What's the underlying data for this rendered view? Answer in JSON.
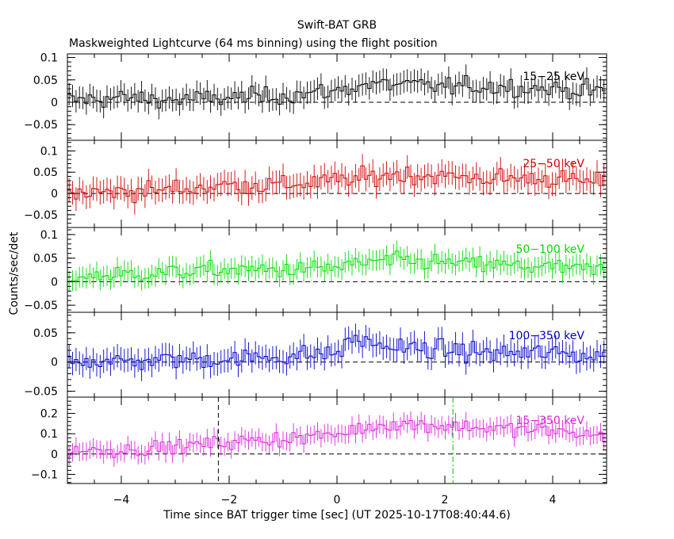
{
  "header": {
    "title": "Swift-BAT GRB",
    "subtitle": "Maskweighted Lightcurve (64 ms binning) using the flight position"
  },
  "axes": {
    "xlabel": "Time since BAT trigger time [sec] (UT 2025-10-17T08:40:44.6)",
    "ylabel": "Counts/sec/det"
  },
  "chart_data": {
    "type": "line",
    "style": "step with error bars",
    "x_range": [
      -5.0,
      5.0
    ],
    "x_ticks": [
      -4,
      -2,
      0,
      2,
      4
    ],
    "x_tick_labels": [
      "−4",
      "−2",
      "0",
      "2",
      "4"
    ],
    "bin_width_sec": 0.064,
    "markers": [
      {
        "x": -2.2,
        "panel": 4,
        "style": "dashed",
        "color": "#000000"
      },
      {
        "x": 2.15,
        "panel": 4,
        "style": "dash-dot",
        "color": "#00c000"
      }
    ],
    "panels": [
      {
        "band": "15−25 keV",
        "color": "#000000",
        "ylim": [
          -0.085,
          0.108
        ],
        "yticks": [
          0.1,
          0.05,
          0,
          -0.05
        ],
        "yticklabels": [
          "0.1",
          "0.05",
          "0",
          "−0.05"
        ],
        "error": 0.025,
        "points": [
          [
            -4.8,
            0.005
          ],
          [
            -4.0,
            0.01
          ],
          [
            -3.0,
            0.005
          ],
          [
            -2.0,
            0.01
          ],
          [
            -1.0,
            0.015
          ],
          [
            0.0,
            0.025
          ],
          [
            0.5,
            0.04
          ],
          [
            1.0,
            0.04
          ],
          [
            2.0,
            0.035
          ],
          [
            3.0,
            0.035
          ],
          [
            4.0,
            0.03
          ],
          [
            4.8,
            0.025
          ]
        ]
      },
      {
        "band": "25−50 keV",
        "color": "#d00000",
        "ylim": [
          -0.08,
          0.125
        ],
        "yticks": [
          0.1,
          0.05,
          0,
          -0.05
        ],
        "yticklabels": [
          "0.1",
          "0.05",
          "0",
          "−0.05"
        ],
        "error": 0.028,
        "points": [
          [
            -4.8,
            0.0
          ],
          [
            -4.0,
            0.005
          ],
          [
            -3.0,
            0.01
          ],
          [
            -2.0,
            0.02
          ],
          [
            -1.0,
            0.02
          ],
          [
            0.0,
            0.03
          ],
          [
            0.5,
            0.035
          ],
          [
            1.0,
            0.045
          ],
          [
            2.0,
            0.04
          ],
          [
            3.0,
            0.035
          ],
          [
            4.0,
            0.035
          ],
          [
            4.8,
            0.025
          ]
        ]
      },
      {
        "band": "50−100 keV",
        "color": "#00dd00",
        "ylim": [
          -0.065,
          0.115
        ],
        "yticks": [
          0.1,
          0.05,
          0,
          -0.05
        ],
        "yticklabels": [
          "0.1",
          "0.05",
          "0",
          "−0.05"
        ],
        "error": 0.022,
        "points": [
          [
            -4.8,
            0.01
          ],
          [
            -4.0,
            0.015
          ],
          [
            -3.0,
            0.02
          ],
          [
            -2.0,
            0.025
          ],
          [
            -1.0,
            0.025
          ],
          [
            0.0,
            0.03
          ],
          [
            0.5,
            0.04
          ],
          [
            1.0,
            0.045
          ],
          [
            2.0,
            0.04
          ],
          [
            3.0,
            0.035
          ],
          [
            4.0,
            0.03
          ],
          [
            4.8,
            0.025
          ]
        ]
      },
      {
        "band": "100−350 keV",
        "color": "#0000cc",
        "ylim": [
          -0.06,
          0.085
        ],
        "yticks": [
          0.05,
          0,
          -0.05
        ],
        "yticklabels": [
          "0.05",
          "0",
          "−0.05"
        ],
        "error": 0.02,
        "points": [
          [
            -4.8,
            0.005
          ],
          [
            -4.0,
            0.0
          ],
          [
            -3.0,
            0.005
          ],
          [
            -2.0,
            0.005
          ],
          [
            -1.0,
            0.01
          ],
          [
            0.0,
            0.015
          ],
          [
            0.3,
            0.04
          ],
          [
            1.0,
            0.025
          ],
          [
            2.0,
            0.02
          ],
          [
            3.0,
            0.015
          ],
          [
            4.0,
            0.015
          ],
          [
            4.8,
            0.01
          ]
        ]
      },
      {
        "band": "15−350 keV",
        "color": "#dd22dd",
        "ylim": [
          -0.145,
          0.28
        ],
        "yticks": [
          0.2,
          0.1,
          0,
          -0.1
        ],
        "yticklabels": [
          "0.2",
          "0.1",
          "0",
          "−0.1"
        ],
        "error": 0.045,
        "points": [
          [
            -4.8,
            0.02
          ],
          [
            -4.0,
            0.02
          ],
          [
            -3.0,
            0.035
          ],
          [
            -2.0,
            0.06
          ],
          [
            -1.0,
            0.075
          ],
          [
            0.0,
            0.095
          ],
          [
            0.5,
            0.13
          ],
          [
            1.0,
            0.15
          ],
          [
            2.0,
            0.14
          ],
          [
            3.0,
            0.125
          ],
          [
            4.0,
            0.115
          ],
          [
            4.8,
            0.09
          ]
        ]
      }
    ]
  }
}
